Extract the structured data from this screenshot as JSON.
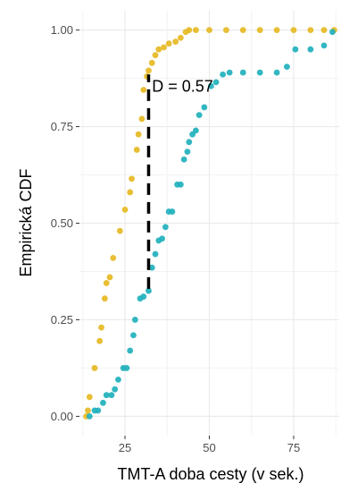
{
  "chart_data": {
    "type": "scatter",
    "xlabel": "TMT-A doba cesty (v sek.)",
    "ylabel": "Empirická CDF",
    "xlim": [
      11.5,
      88.5
    ],
    "ylim": [
      -0.05,
      1.05
    ],
    "x_ticks": [
      25,
      50,
      75
    ],
    "x_tick_labels": [
      "25",
      "50",
      "75"
    ],
    "y_ticks": [
      0,
      0.25,
      0.5,
      0.75,
      1
    ],
    "y_tick_labels": [
      "0.00",
      "0.25",
      "0.50",
      "0.75",
      "1.00"
    ],
    "grid": true,
    "legend": "none",
    "colors": {
      "gold": "#E6B923",
      "teal": "#21B1BD"
    },
    "series": [
      {
        "color": "gold",
        "points": [
          [
            13.5,
            0.0
          ],
          [
            14.0,
            0.015
          ],
          [
            14.5,
            0.05
          ],
          [
            16.0,
            0.125
          ],
          [
            17.5,
            0.195
          ],
          [
            18.0,
            0.23
          ],
          [
            19.0,
            0.305
          ],
          [
            19.5,
            0.345
          ],
          [
            20.5,
            0.36
          ],
          [
            21.5,
            0.41
          ],
          [
            23.5,
            0.48
          ],
          [
            25.0,
            0.535
          ],
          [
            26.5,
            0.58
          ],
          [
            27.0,
            0.615
          ],
          [
            28.5,
            0.69
          ],
          [
            29.0,
            0.73
          ],
          [
            30.0,
            0.77
          ],
          [
            30.5,
            0.845
          ],
          [
            31.5,
            0.88
          ],
          [
            32.0,
            0.895
          ],
          [
            33.0,
            0.915
          ],
          [
            34.0,
            0.935
          ],
          [
            35.0,
            0.95
          ],
          [
            36.5,
            0.955
          ],
          [
            38.0,
            0.965
          ],
          [
            40.0,
            0.97
          ],
          [
            41.5,
            0.98
          ],
          [
            43.0,
            0.995
          ],
          [
            44.0,
            1.0
          ],
          [
            46.0,
            1.0
          ],
          [
            50.0,
            1.0
          ],
          [
            55.0,
            1.0
          ],
          [
            60.0,
            1.0
          ],
          [
            65.0,
            1.0
          ],
          [
            70.0,
            1.0
          ],
          [
            75.0,
            1.0
          ],
          [
            80.0,
            1.0
          ],
          [
            84.0,
            1.0
          ],
          [
            87.0,
            1.0
          ]
        ]
      },
      {
        "color": "teal",
        "points": [
          [
            14.5,
            0.0
          ],
          [
            16.0,
            0.015
          ],
          [
            17.0,
            0.015
          ],
          [
            18.5,
            0.035
          ],
          [
            19.5,
            0.055
          ],
          [
            21.0,
            0.055
          ],
          [
            22.0,
            0.07
          ],
          [
            23.0,
            0.095
          ],
          [
            24.5,
            0.125
          ],
          [
            25.5,
            0.125
          ],
          [
            26.5,
            0.17
          ],
          [
            27.5,
            0.21
          ],
          [
            28.0,
            0.25
          ],
          [
            29.5,
            0.305
          ],
          [
            30.5,
            0.31
          ],
          [
            32.0,
            0.325
          ],
          [
            33.0,
            0.385
          ],
          [
            34.0,
            0.42
          ],
          [
            35.0,
            0.455
          ],
          [
            36.0,
            0.46
          ],
          [
            37.0,
            0.49
          ],
          [
            38.0,
            0.53
          ],
          [
            39.0,
            0.53
          ],
          [
            40.5,
            0.6
          ],
          [
            41.5,
            0.6
          ],
          [
            42.5,
            0.665
          ],
          [
            43.5,
            0.685
          ],
          [
            44.0,
            0.71
          ],
          [
            45.0,
            0.73
          ],
          [
            46.0,
            0.74
          ],
          [
            47.0,
            0.78
          ],
          [
            48.5,
            0.8
          ],
          [
            50.5,
            0.855
          ],
          [
            52.0,
            0.865
          ],
          [
            54.0,
            0.885
          ],
          [
            56.0,
            0.89
          ],
          [
            60.0,
            0.89
          ],
          [
            65.0,
            0.89
          ],
          [
            70.0,
            0.89
          ],
          [
            73.0,
            0.905
          ],
          [
            75.5,
            0.95
          ],
          [
            80.0,
            0.95
          ],
          [
            84.0,
            0.96
          ],
          [
            86.5,
            0.995
          ]
        ]
      }
    ],
    "annotations": [
      {
        "text": "D = 0.57",
        "x": 33.0,
        "y": 0.84
      }
    ],
    "segment": {
      "x": 32.0,
      "y_start": 0.33,
      "y_end": 0.885,
      "style": "dashed",
      "color": "#000000"
    }
  }
}
